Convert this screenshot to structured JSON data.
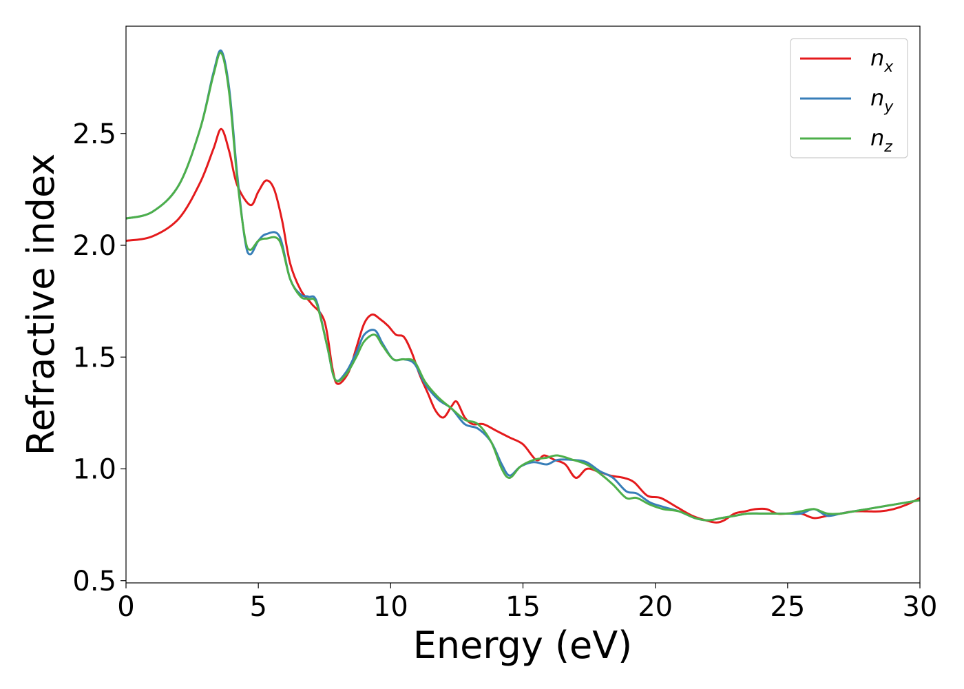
{
  "chart_data": {
    "type": "line",
    "title": "",
    "xlabel": "Energy (eV)",
    "ylabel": "Refractive index",
    "xlim": [
      0,
      30
    ],
    "ylim": [
      0.49,
      2.98
    ],
    "xticks": [
      0,
      5,
      10,
      15,
      20,
      25,
      30
    ],
    "yticks": [
      0.5,
      1.0,
      1.5,
      2.0,
      2.5
    ],
    "xtick_labels": [
      "0",
      "5",
      "10",
      "15",
      "20",
      "25",
      "30"
    ],
    "ytick_labels": [
      "0.5",
      "1.0",
      "1.5",
      "2.0",
      "2.5"
    ],
    "grid": false,
    "legend_position": "top-right",
    "series": [
      {
        "name": "n",
        "subscript": "x",
        "color": "#e41a1c",
        "points": [
          [
            0,
            2.02
          ],
          [
            1,
            2.04
          ],
          [
            2,
            2.12
          ],
          [
            2.8,
            2.28
          ],
          [
            3.3,
            2.43
          ],
          [
            3.6,
            2.52
          ],
          [
            3.9,
            2.42
          ],
          [
            4.2,
            2.27
          ],
          [
            4.7,
            2.18
          ],
          [
            5.0,
            2.24
          ],
          [
            5.3,
            2.29
          ],
          [
            5.6,
            2.25
          ],
          [
            5.9,
            2.11
          ],
          [
            6.2,
            1.92
          ],
          [
            6.6,
            1.8
          ],
          [
            7.0,
            1.74
          ],
          [
            7.5,
            1.66
          ],
          [
            7.8,
            1.45
          ],
          [
            8.0,
            1.38
          ],
          [
            8.4,
            1.43
          ],
          [
            8.7,
            1.54
          ],
          [
            9.0,
            1.65
          ],
          [
            9.3,
            1.69
          ],
          [
            9.6,
            1.67
          ],
          [
            9.9,
            1.64
          ],
          [
            10.2,
            1.6
          ],
          [
            10.5,
            1.59
          ],
          [
            10.8,
            1.52
          ],
          [
            11.1,
            1.42
          ],
          [
            11.4,
            1.34
          ],
          [
            11.7,
            1.26
          ],
          [
            12.0,
            1.23
          ],
          [
            12.3,
            1.28
          ],
          [
            12.5,
            1.3
          ],
          [
            12.8,
            1.23
          ],
          [
            13.1,
            1.2
          ],
          [
            13.5,
            1.2
          ],
          [
            14.0,
            1.17
          ],
          [
            14.5,
            1.14
          ],
          [
            15.0,
            1.11
          ],
          [
            15.5,
            1.04
          ],
          [
            15.8,
            1.06
          ],
          [
            16.2,
            1.04
          ],
          [
            16.6,
            1.02
          ],
          [
            17.0,
            0.96
          ],
          [
            17.4,
            1.0
          ],
          [
            17.8,
            0.99
          ],
          [
            18.3,
            0.97
          ],
          [
            18.8,
            0.96
          ],
          [
            19.2,
            0.94
          ],
          [
            19.7,
            0.88
          ],
          [
            20.2,
            0.87
          ],
          [
            20.8,
            0.83
          ],
          [
            21.4,
            0.79
          ],
          [
            21.9,
            0.77
          ],
          [
            22.3,
            0.76
          ],
          [
            22.6,
            0.77
          ],
          [
            23.0,
            0.8
          ],
          [
            23.4,
            0.81
          ],
          [
            23.8,
            0.82
          ],
          [
            24.2,
            0.82
          ],
          [
            24.6,
            0.8
          ],
          [
            25.0,
            0.8
          ],
          [
            25.5,
            0.8
          ],
          [
            26.0,
            0.78
          ],
          [
            26.5,
            0.79
          ],
          [
            27.0,
            0.8
          ],
          [
            27.5,
            0.81
          ],
          [
            28.0,
            0.81
          ],
          [
            28.5,
            0.81
          ],
          [
            29.0,
            0.82
          ],
          [
            29.5,
            0.84
          ],
          [
            30,
            0.87
          ]
        ]
      },
      {
        "name": "n",
        "subscript": "y",
        "color": "#377eb8",
        "points": [
          [
            0,
            2.12
          ],
          [
            1,
            2.15
          ],
          [
            2,
            2.27
          ],
          [
            2.8,
            2.52
          ],
          [
            3.3,
            2.77
          ],
          [
            3.6,
            2.87
          ],
          [
            3.9,
            2.7
          ],
          [
            4.2,
            2.32
          ],
          [
            4.5,
            2.02
          ],
          [
            4.7,
            1.96
          ],
          [
            5.0,
            2.02
          ],
          [
            5.3,
            2.05
          ],
          [
            5.8,
            2.04
          ],
          [
            6.2,
            1.85
          ],
          [
            6.6,
            1.78
          ],
          [
            6.9,
            1.77
          ],
          [
            7.2,
            1.75
          ],
          [
            7.6,
            1.55
          ],
          [
            7.9,
            1.4
          ],
          [
            8.3,
            1.43
          ],
          [
            8.7,
            1.52
          ],
          [
            9.0,
            1.6
          ],
          [
            9.4,
            1.62
          ],
          [
            9.7,
            1.56
          ],
          [
            10.1,
            1.49
          ],
          [
            10.5,
            1.49
          ],
          [
            10.9,
            1.47
          ],
          [
            11.3,
            1.38
          ],
          [
            11.8,
            1.31
          ],
          [
            12.3,
            1.27
          ],
          [
            12.8,
            1.2
          ],
          [
            13.3,
            1.18
          ],
          [
            13.8,
            1.12
          ],
          [
            14.2,
            1.02
          ],
          [
            14.5,
            0.97
          ],
          [
            14.9,
            1.01
          ],
          [
            15.4,
            1.03
          ],
          [
            15.9,
            1.02
          ],
          [
            16.3,
            1.04
          ],
          [
            16.9,
            1.04
          ],
          [
            17.4,
            1.03
          ],
          [
            17.9,
            0.99
          ],
          [
            18.4,
            0.96
          ],
          [
            18.9,
            0.9
          ],
          [
            19.3,
            0.89
          ],
          [
            19.8,
            0.85
          ],
          [
            20.3,
            0.83
          ],
          [
            20.9,
            0.81
          ],
          [
            21.5,
            0.78
          ],
          [
            22.0,
            0.77
          ],
          [
            22.5,
            0.78
          ],
          [
            23.0,
            0.79
          ],
          [
            23.5,
            0.8
          ],
          [
            24.0,
            0.8
          ],
          [
            24.5,
            0.8
          ],
          [
            25.0,
            0.8
          ],
          [
            25.5,
            0.8
          ],
          [
            26.0,
            0.82
          ],
          [
            26.5,
            0.79
          ],
          [
            27.0,
            0.8
          ],
          [
            27.5,
            0.81
          ],
          [
            28.0,
            0.82
          ],
          [
            28.5,
            0.83
          ],
          [
            29.0,
            0.84
          ],
          [
            29.5,
            0.85
          ],
          [
            30,
            0.86
          ]
        ]
      },
      {
        "name": "n",
        "subscript": "z",
        "color": "#4daf4a",
        "points": [
          [
            0,
            2.12
          ],
          [
            1,
            2.15
          ],
          [
            2,
            2.27
          ],
          [
            2.8,
            2.52
          ],
          [
            3.3,
            2.76
          ],
          [
            3.6,
            2.86
          ],
          [
            3.9,
            2.68
          ],
          [
            4.2,
            2.3
          ],
          [
            4.5,
            2.03
          ],
          [
            4.7,
            1.98
          ],
          [
            5.0,
            2.02
          ],
          [
            5.3,
            2.03
          ],
          [
            5.8,
            2.02
          ],
          [
            6.2,
            1.85
          ],
          [
            6.6,
            1.77
          ],
          [
            6.9,
            1.76
          ],
          [
            7.2,
            1.74
          ],
          [
            7.6,
            1.55
          ],
          [
            7.9,
            1.4
          ],
          [
            8.3,
            1.42
          ],
          [
            8.7,
            1.5
          ],
          [
            9.0,
            1.57
          ],
          [
            9.4,
            1.6
          ],
          [
            9.7,
            1.55
          ],
          [
            10.1,
            1.49
          ],
          [
            10.5,
            1.49
          ],
          [
            10.9,
            1.48
          ],
          [
            11.3,
            1.39
          ],
          [
            11.8,
            1.32
          ],
          [
            12.3,
            1.27
          ],
          [
            12.8,
            1.22
          ],
          [
            13.3,
            1.2
          ],
          [
            13.8,
            1.12
          ],
          [
            14.2,
            1.0
          ],
          [
            14.5,
            0.96
          ],
          [
            14.9,
            1.01
          ],
          [
            15.4,
            1.04
          ],
          [
            15.9,
            1.05
          ],
          [
            16.3,
            1.06
          ],
          [
            16.9,
            1.04
          ],
          [
            17.4,
            1.02
          ],
          [
            17.9,
            0.98
          ],
          [
            18.4,
            0.93
          ],
          [
            18.9,
            0.87
          ],
          [
            19.3,
            0.87
          ],
          [
            19.8,
            0.84
          ],
          [
            20.3,
            0.82
          ],
          [
            20.9,
            0.81
          ],
          [
            21.5,
            0.78
          ],
          [
            22.0,
            0.77
          ],
          [
            22.5,
            0.78
          ],
          [
            23.0,
            0.79
          ],
          [
            23.5,
            0.8
          ],
          [
            24.0,
            0.8
          ],
          [
            24.5,
            0.8
          ],
          [
            25.0,
            0.8
          ],
          [
            25.5,
            0.81
          ],
          [
            26.0,
            0.82
          ],
          [
            26.5,
            0.8
          ],
          [
            27.0,
            0.8
          ],
          [
            27.5,
            0.81
          ],
          [
            28.0,
            0.82
          ],
          [
            28.5,
            0.83
          ],
          [
            29.0,
            0.84
          ],
          [
            29.5,
            0.85
          ],
          [
            30,
            0.86
          ]
        ]
      }
    ]
  }
}
